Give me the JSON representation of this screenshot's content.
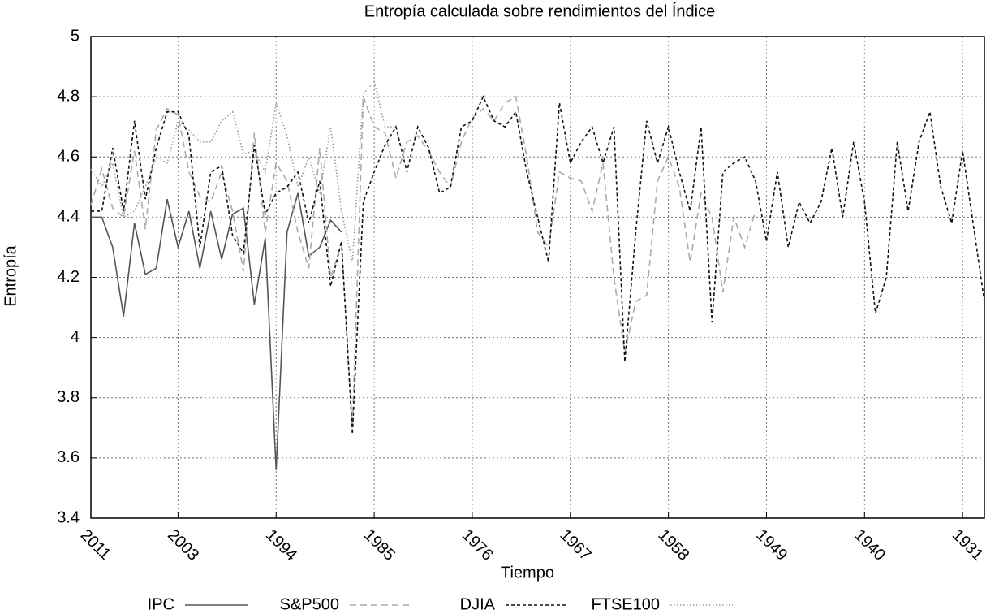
{
  "chart_data": {
    "type": "line",
    "title": "Entropía calculada sobre rendimientos del Índice",
    "x_label": "Tiempo",
    "y_label": "Entropía",
    "x": [
      2011,
      2010,
      2009,
      2008,
      2007,
      2006,
      2005,
      2004,
      2003,
      2002,
      2001,
      2000,
      1999,
      1998,
      1997,
      1996,
      1995,
      1994,
      1993,
      1992,
      1991,
      1990,
      1989,
      1988,
      1987,
      1986,
      1985,
      1984,
      1983,
      1982,
      1981,
      1980,
      1979,
      1978,
      1977,
      1976,
      1975,
      1974,
      1973,
      1972,
      1971,
      1970,
      1969,
      1968,
      1967,
      1966,
      1965,
      1964,
      1963,
      1962,
      1961,
      1960,
      1959,
      1958,
      1957,
      1956,
      1955,
      1954,
      1953,
      1952,
      1951,
      1950,
      1949,
      1948,
      1947,
      1946,
      1945,
      1944,
      1943,
      1942,
      1941,
      1940,
      1939,
      1938,
      1937,
      1936,
      1935,
      1934,
      1933,
      1932,
      1931,
      1930,
      1929
    ],
    "xlim": [
      2011,
      1929
    ],
    "xticks": [
      2011,
      2003,
      1994,
      1985,
      1976,
      1967,
      1958,
      1949,
      1940,
      1931
    ],
    "ylim": [
      3.4,
      5
    ],
    "yticks": [
      3.4,
      3.6,
      3.8,
      4,
      4.2,
      4.4,
      4.6,
      4.8,
      5
    ],
    "grid": true,
    "legend": "bottom",
    "series": [
      {
        "name": "IPC",
        "color": "#555555",
        "style": "solid",
        "values": [
          4.4,
          4.4,
          4.3,
          4.07,
          4.38,
          4.21,
          4.23,
          4.46,
          4.3,
          4.42,
          4.23,
          4.42,
          4.26,
          4.41,
          4.43,
          4.11,
          4.33,
          3.56,
          4.35,
          4.48,
          4.27,
          4.3,
          4.39,
          4.35,
          null,
          null,
          null,
          null,
          null,
          null,
          null,
          null,
          null,
          null,
          null,
          null,
          null,
          null,
          null,
          null,
          null,
          null,
          null,
          null,
          null,
          null,
          null,
          null,
          null,
          null,
          null,
          null,
          null,
          null,
          null,
          null,
          null,
          null,
          null,
          null,
          null,
          null,
          null,
          null,
          null,
          null,
          null,
          null,
          null,
          null,
          null,
          null,
          null,
          null,
          null,
          null,
          null,
          null,
          null,
          null,
          null,
          null,
          null
        ]
      },
      {
        "name": "S&P500",
        "color": "#aaaaaa",
        "style": "dashed",
        "values": [
          4.44,
          4.56,
          4.43,
          4.4,
          4.62,
          4.36,
          4.69,
          4.76,
          4.74,
          4.55,
          4.47,
          4.45,
          4.55,
          4.42,
          4.22,
          4.68,
          4.35,
          4.58,
          4.52,
          4.35,
          4.23,
          4.63,
          4.2,
          4.31,
          3.7,
          4.8,
          4.7,
          4.68,
          4.53,
          4.65,
          4.67,
          4.62,
          4.55,
          4.5,
          4.65,
          4.73,
          4.76,
          4.72,
          4.78,
          4.8,
          4.6,
          4.35,
          4.3,
          4.55,
          4.53,
          4.52,
          4.42,
          4.58,
          4.2,
          3.95,
          4.12,
          4.14,
          4.52,
          4.6,
          4.5,
          4.25,
          4.48,
          4.4,
          4.15,
          4.4,
          4.3,
          4.42,
          null,
          null,
          null,
          null,
          null,
          null,
          null,
          null,
          null,
          null,
          null,
          null,
          null,
          null,
          null,
          null,
          null,
          null,
          null,
          null,
          null
        ]
      },
      {
        "name": "DJIA",
        "color": "#111111",
        "style": "dotdash",
        "values": [
          4.42,
          4.42,
          4.63,
          4.42,
          4.72,
          4.46,
          4.63,
          4.75,
          4.75,
          4.67,
          4.3,
          4.55,
          4.57,
          4.34,
          4.28,
          4.64,
          4.41,
          4.48,
          4.5,
          4.55,
          4.38,
          4.52,
          4.17,
          4.32,
          3.68,
          4.45,
          4.55,
          4.64,
          4.7,
          4.55,
          4.7,
          4.63,
          4.48,
          4.5,
          4.7,
          4.72,
          4.8,
          4.72,
          4.7,
          4.75,
          4.55,
          4.4,
          4.25,
          4.78,
          4.58,
          4.65,
          4.7,
          4.58,
          4.7,
          3.92,
          4.35,
          4.72,
          4.58,
          4.7,
          4.55,
          4.42,
          4.7,
          4.05,
          4.55,
          4.58,
          4.6,
          4.52,
          4.32,
          4.55,
          4.3,
          4.45,
          4.38,
          4.45,
          4.63,
          4.4,
          4.65,
          4.45,
          4.08,
          4.2,
          4.65,
          4.42,
          4.65,
          4.75,
          4.5,
          4.38,
          4.62,
          4.37,
          4.12
        ]
      },
      {
        "name": "FTSE100",
        "color": "#999999",
        "style": "dotted",
        "values": [
          4.56,
          4.5,
          4.58,
          4.4,
          4.42,
          4.5,
          4.6,
          4.58,
          4.72,
          4.69,
          4.65,
          4.65,
          4.72,
          4.75,
          4.61,
          4.62,
          4.55,
          4.78,
          4.67,
          4.5,
          4.6,
          4.48,
          4.7,
          4.42,
          4.25,
          4.81,
          4.85,
          4.7,
          4.7,
          null,
          null,
          null,
          null,
          null,
          null,
          null,
          null,
          null,
          null,
          null,
          null,
          null,
          null,
          null,
          null,
          null,
          null,
          null,
          null,
          null,
          null,
          null,
          null,
          null,
          null,
          null,
          null,
          null,
          null,
          null,
          null,
          null,
          null,
          null,
          null,
          null,
          null,
          null,
          null,
          null,
          null,
          null,
          null,
          null,
          null,
          null,
          null,
          null,
          null,
          null,
          null,
          null,
          null
        ]
      }
    ]
  }
}
